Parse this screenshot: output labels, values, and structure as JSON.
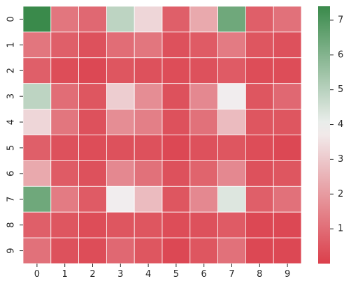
{
  "chart_data": {
    "type": "heatmap",
    "title": "",
    "xlabel": "",
    "ylabel": "",
    "x_categories": [
      "0",
      "1",
      "2",
      "3",
      "4",
      "5",
      "6",
      "7",
      "8",
      "9"
    ],
    "y_categories": [
      "0",
      "1",
      "2",
      "3",
      "4",
      "5",
      "6",
      "7",
      "8",
      "9"
    ],
    "values": [
      [
        7.4,
        1.2,
        0.9,
        4.9,
        3.3,
        0.7,
        2.3,
        6.4,
        0.7,
        1.1
      ],
      [
        1.2,
        0.7,
        0.4,
        1.0,
        1.2,
        0.4,
        0.6,
        1.3,
        0.5,
        0.4
      ],
      [
        0.7,
        0.3,
        0.2,
        0.5,
        0.4,
        0.3,
        0.4,
        0.6,
        0.3,
        0.3
      ],
      [
        4.9,
        1.0,
        0.5,
        3.1,
        1.7,
        0.4,
        1.6,
        3.8,
        0.5,
        0.9
      ],
      [
        3.3,
        1.2,
        0.4,
        1.7,
        1.4,
        0.4,
        1.1,
        2.7,
        0.5,
        0.5
      ],
      [
        0.7,
        0.4,
        0.3,
        0.4,
        0.4,
        0.2,
        0.4,
        0.5,
        0.3,
        0.2
      ],
      [
        2.3,
        0.6,
        0.4,
        1.6,
        1.1,
        0.4,
        0.8,
        1.6,
        0.4,
        0.5
      ],
      [
        6.4,
        1.3,
        0.6,
        3.8,
        2.7,
        0.5,
        1.6,
        4.3,
        0.7,
        1.1
      ],
      [
        0.7,
        0.5,
        0.3,
        0.5,
        0.5,
        0.3,
        0.4,
        0.6,
        0.2,
        0.2
      ],
      [
        1.1,
        0.4,
        0.3,
        0.9,
        0.5,
        0.2,
        0.5,
        1.1,
        0.2,
        0.2
      ]
    ],
    "vmin": 0.0,
    "vmax": 7.4,
    "colorbar_ticks": [
      1,
      2,
      3,
      4,
      5,
      6,
      7
    ],
    "colormap": {
      "low": "#db3f4b",
      "mid": "#f2f2f2",
      "high": "#3a8a4b",
      "mid_value": 3.9
    },
    "grid": true,
    "cell_border_color": "#ffffff"
  }
}
